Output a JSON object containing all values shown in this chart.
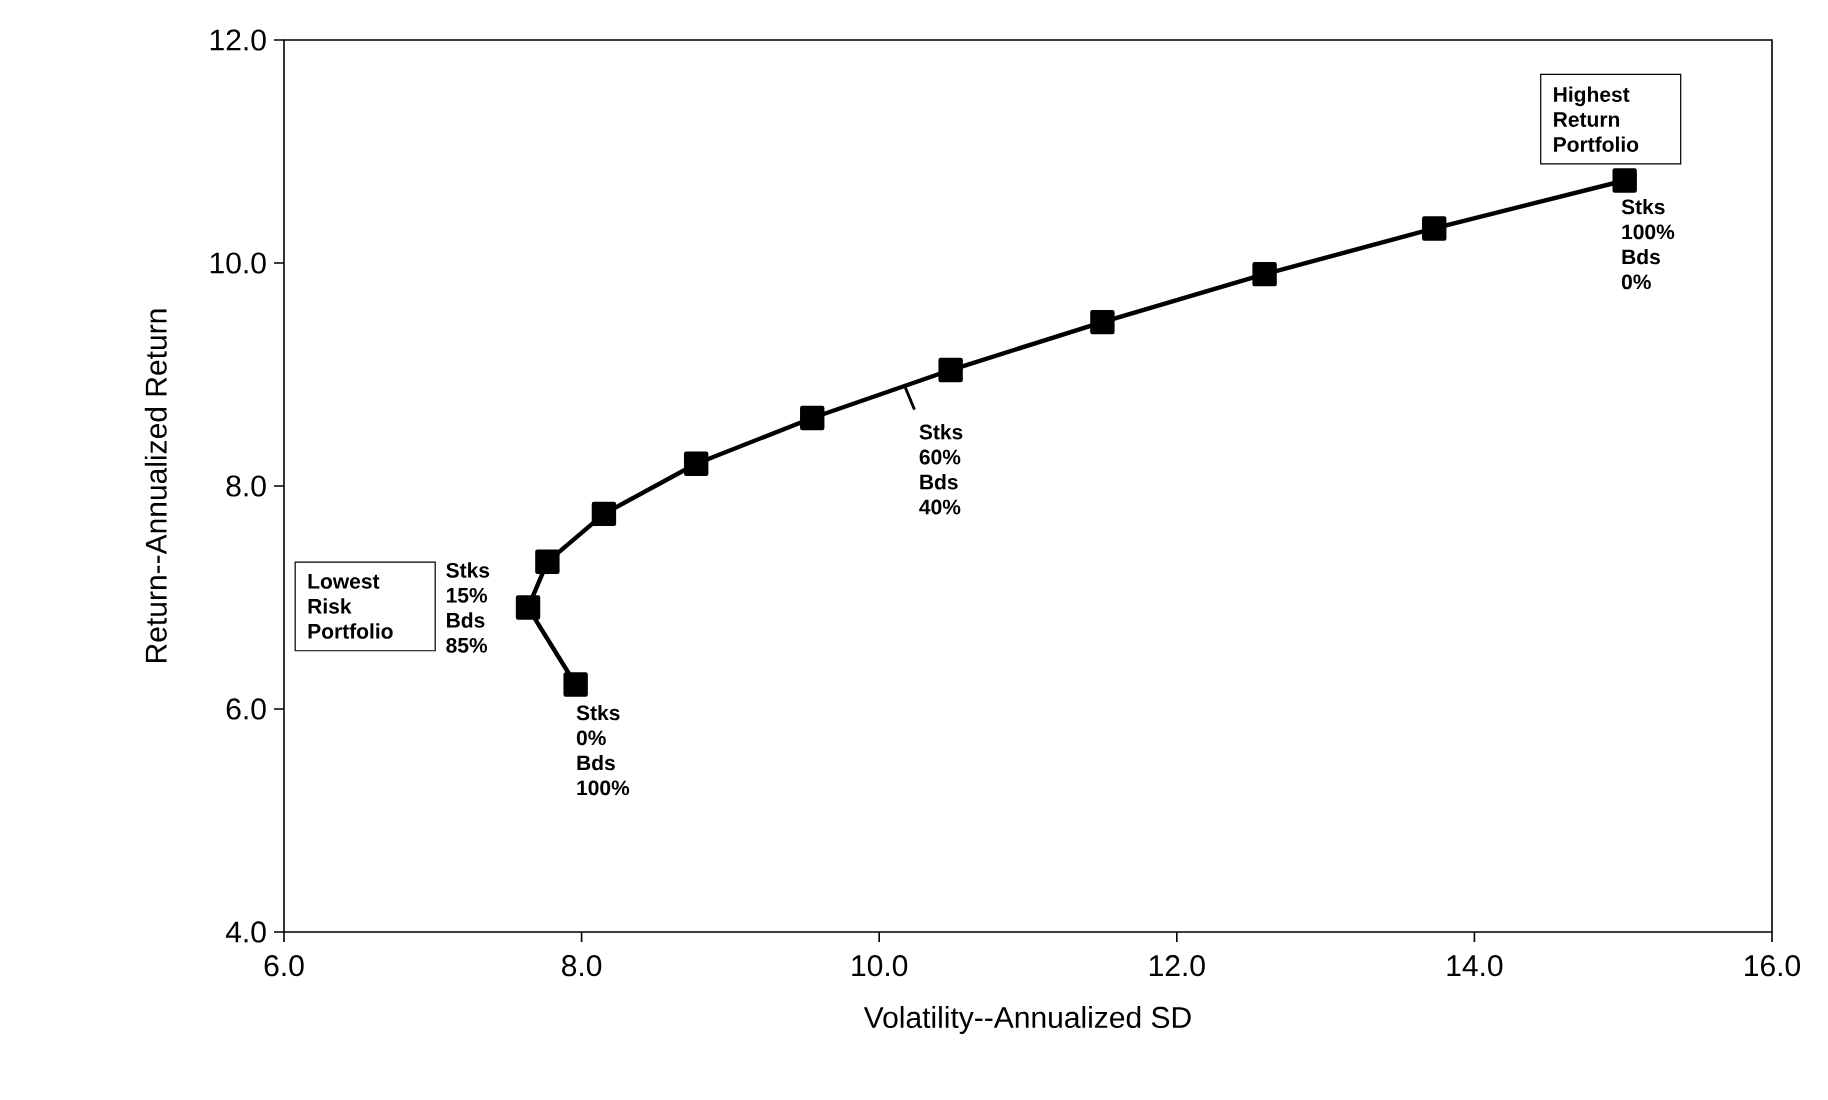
{
  "chart_data": {
    "type": "line",
    "xlabel": "Volatility--Annualized SD",
    "ylabel": "Return--Annualized Return",
    "x": [
      7.96,
      7.64,
      7.77,
      8.15,
      8.77,
      9.55,
      10.48,
      11.5,
      12.59,
      13.73,
      15.01
    ],
    "series": [
      {
        "color": "#000000",
        "values": [
          6.22,
          6.91,
          7.32,
          7.75,
          8.2,
          8.61,
          9.04,
          9.47,
          9.9,
          10.31,
          10.74
        ]
      }
    ],
    "xlim": [
      6,
      16
    ],
    "ylim": [
      4,
      12
    ],
    "xticks": [
      {
        "value": 6,
        "label": "6.0"
      },
      {
        "value": 8,
        "label": "8.0"
      },
      {
        "value": 10,
        "label": "10.0"
      },
      {
        "value": 12,
        "label": "12.0"
      },
      {
        "value": 14,
        "label": "14.0"
      },
      {
        "value": 16,
        "label": "16.0"
      }
    ],
    "yticks": [
      {
        "value": 4,
        "label": "4.0"
      },
      {
        "value": 6,
        "label": "6.0"
      },
      {
        "value": 8,
        "label": "8.0"
      },
      {
        "value": 10,
        "label": "10.0"
      },
      {
        "value": 12,
        "label": "12.0"
      }
    ],
    "marker": "square",
    "line_style": "solid",
    "grid": false,
    "annotations": [
      {
        "text": "Stks 0% Bds 100%",
        "x": 7.96,
        "y": 6.22
      },
      {
        "text": "Stks 15% Bds 85%",
        "x": 7.64,
        "y": 6.91
      },
      {
        "text": "Stks 60% Bds 40%",
        "x": 10.17,
        "y": 8.9
      },
      "Lowest Risk Portfolio",
      {
        "text": "Highest Return Portfolio",
        "x": 15.01,
        "y": 10.74
      },
      {
        "text": "Stks 100% Bds 0%",
        "x": 15.01,
        "y": 10.74
      }
    ]
  }
}
